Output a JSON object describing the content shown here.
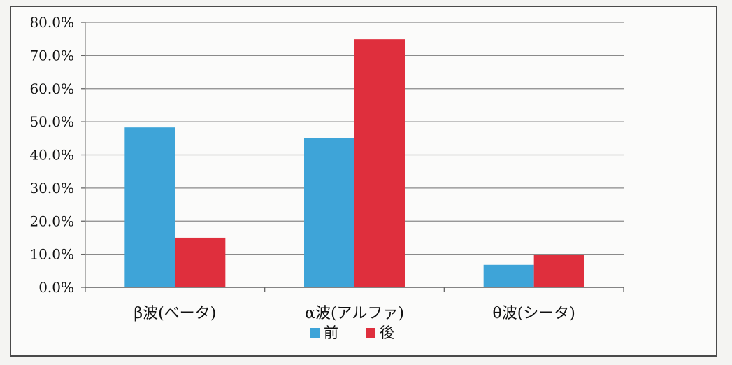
{
  "chart_data": {
    "type": "bar",
    "categories": [
      "β波(ベータ)",
      "α波(アルファ)",
      "θ波(シータ)"
    ],
    "series": [
      {
        "name": "前",
        "values": [
          48.3,
          45.1,
          6.8
        ],
        "color": "#3ea4d8"
      },
      {
        "name": "後",
        "values": [
          15.0,
          74.9,
          9.9
        ],
        "color": "#df2f3d"
      }
    ],
    "ylim": [
      0,
      80
    ],
    "yticks": [
      "0.0%",
      "10.0%",
      "20.0%",
      "30.0%",
      "40.0%",
      "50.0%",
      "60.0%",
      "70.0%",
      "80.0%"
    ],
    "title": "",
    "xlabel": "",
    "ylabel": "",
    "grid": true,
    "legend": "bottom"
  }
}
